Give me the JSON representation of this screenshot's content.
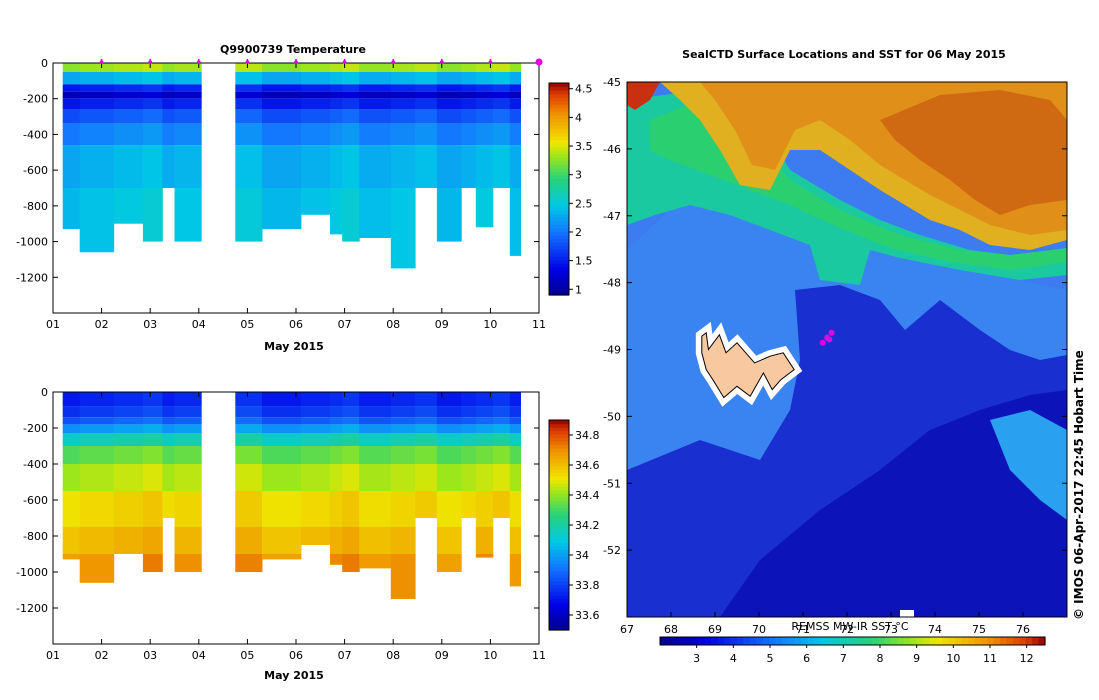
{
  "chart_data": [
    {
      "type": "heatmap",
      "title": "Q9900739  Temperature",
      "xlabel": "May 2015",
      "ylabel": "",
      "xlim": [
        1,
        11
      ],
      "ylim": [
        -1400,
        0
      ],
      "x_ticks": [
        "01",
        "02",
        "03",
        "04",
        "05",
        "06",
        "07",
        "08",
        "09",
        "10",
        "11"
      ],
      "y_ticks": [
        "0",
        "-200",
        "-400",
        "-600",
        "-800",
        "-1000",
        "-1200"
      ],
      "colorbar_range": [
        0.9,
        4.6
      ],
      "colorbar_ticks": [
        "1",
        "1.5",
        "2",
        "2.5",
        "3",
        "3.5",
        "4",
        "4.5"
      ],
      "profile_markers_day": [
        2.0,
        3.0,
        4.0,
        5.0,
        6.0,
        7.0,
        8.0,
        9.0,
        10.0,
        11.0
      ],
      "profiles": [
        {
          "x0": 1.2,
          "x1": 1.55,
          "max_depth": -930
        },
        {
          "x0": 1.55,
          "x1": 2.25,
          "max_depth": -1060
        },
        {
          "x0": 2.25,
          "x1": 2.85,
          "max_depth": -900
        },
        {
          "x0": 2.85,
          "x1": 3.25,
          "max_depth": -1000
        },
        {
          "x0": 3.25,
          "x1": 3.5,
          "max_depth": -700
        },
        {
          "x0": 3.5,
          "x1": 4.05,
          "max_depth": -1000
        },
        {
          "x0": 4.75,
          "x1": 5.3,
          "max_depth": -1000
        },
        {
          "x0": 5.3,
          "x1": 6.1,
          "max_depth": -930
        },
        {
          "x0": 6.1,
          "x1": 6.7,
          "max_depth": -850
        },
        {
          "x0": 6.7,
          "x1": 6.95,
          "max_depth": -960
        },
        {
          "x0": 6.95,
          "x1": 7.3,
          "max_depth": -1000
        },
        {
          "x0": 7.3,
          "x1": 7.95,
          "max_depth": -980
        },
        {
          "x0": 7.95,
          "x1": 8.45,
          "max_depth": -1150
        },
        {
          "x0": 8.45,
          "x1": 8.9,
          "max_depth": -700
        },
        {
          "x0": 8.9,
          "x1": 9.4,
          "max_depth": -1000
        },
        {
          "x0": 9.4,
          "x1": 9.7,
          "max_depth": -700
        },
        {
          "x0": 9.7,
          "x1": 10.05,
          "max_depth": -920
        },
        {
          "x0": 10.05,
          "x1": 10.4,
          "max_depth": -700
        },
        {
          "x0": 10.4,
          "x1": 10.62,
          "max_depth": -1080
        }
      ],
      "depth_layers": [
        {
          "top": 0,
          "bottom": -50,
          "value": 3.35
        },
        {
          "top": -50,
          "bottom": -120,
          "value": 2.35
        },
        {
          "top": -120,
          "bottom": -160,
          "value": 1.55
        },
        {
          "top": -160,
          "bottom": -200,
          "value": 1.2
        },
        {
          "top": -200,
          "bottom": -260,
          "value": 1.55
        },
        {
          "top": -260,
          "bottom": -340,
          "value": 1.85
        },
        {
          "top": -340,
          "bottom": -460,
          "value": 2.1
        },
        {
          "top": -460,
          "bottom": -700,
          "value": 2.35
        },
        {
          "top": -700,
          "bottom": -1200,
          "value": 2.45
        }
      ]
    },
    {
      "type": "heatmap",
      "title": "",
      "xlabel": "May 2015",
      "ylabel": "",
      "xlim": [
        1,
        11
      ],
      "ylim": [
        -1400,
        0
      ],
      "x_ticks": [
        "01",
        "02",
        "03",
        "04",
        "05",
        "06",
        "07",
        "08",
        "09",
        "10",
        "11"
      ],
      "y_ticks": [
        "0",
        "-200",
        "-400",
        "-600",
        "-800",
        "-1000",
        "-1200"
      ],
      "colorbar_range": [
        33.5,
        34.9
      ],
      "colorbar_ticks": [
        "33.6",
        "33.8",
        "34",
        "34.2",
        "34.4",
        "34.6",
        "34.8"
      ],
      "depth_layers": [
        {
          "top": 0,
          "bottom": -80,
          "value": 33.75
        },
        {
          "top": -80,
          "bottom": -140,
          "value": 33.8
        },
        {
          "top": -140,
          "bottom": -180,
          "value": 33.87
        },
        {
          "top": -180,
          "bottom": -230,
          "value": 34.0
        },
        {
          "top": -230,
          "bottom": -300,
          "value": 34.17
        },
        {
          "top": -300,
          "bottom": -400,
          "value": 34.35
        },
        {
          "top": -400,
          "bottom": -550,
          "value": 34.45
        },
        {
          "top": -550,
          "bottom": -750,
          "value": 34.55
        },
        {
          "top": -750,
          "bottom": -900,
          "value": 34.62
        },
        {
          "top": -900,
          "bottom": -1200,
          "value": 34.7
        }
      ]
    },
    {
      "type": "heatmap",
      "title": "SealCTD Surface Locations and SST for 06 May 2015",
      "xlabel": "",
      "ylabel": "",
      "xlim": [
        67,
        77
      ],
      "ylim": [
        -53,
        -45
      ],
      "x_ticks": [
        "67",
        "68",
        "69",
        "70",
        "71",
        "72",
        "73",
        "74",
        "75",
        "76"
      ],
      "y_ticks": [
        "-45",
        "-46",
        "-47",
        "-48",
        "-49",
        "-50",
        "-51",
        "-52"
      ],
      "colorbar_label": "REMSS MW-IR SST °C",
      "colorbar_range": [
        2,
        12.5
      ],
      "colorbar_ticks": [
        "3",
        "4",
        "5",
        "6",
        "7",
        "8",
        "9",
        "10",
        "11",
        "12"
      ],
      "island": {
        "lon": [
          68.7,
          68.8,
          68.85,
          69.1,
          69.25,
          69.5,
          69.9,
          70.25,
          70.55,
          70.8,
          70.5,
          70.3,
          70.1,
          69.8,
          69.5,
          69.2,
          68.95,
          68.8,
          68.7
        ],
        "lat": [
          -48.8,
          -48.75,
          -49.0,
          -48.78,
          -49.05,
          -48.9,
          -49.2,
          -49.1,
          -49.05,
          -49.3,
          -49.45,
          -49.6,
          -49.35,
          -49.7,
          -49.55,
          -49.72,
          -49.45,
          -49.3,
          -49.05
        ]
      },
      "seal_locations": [
        {
          "lon": 71.55,
          "lat": -48.82
        },
        {
          "lon": 71.65,
          "lat": -48.75
        },
        {
          "lon": 71.45,
          "lat": -48.9
        },
        {
          "lon": 71.6,
          "lat": -48.85
        }
      ],
      "credit": "© IMOS 06-Apr-2017 22:45 Hobart Time"
    }
  ]
}
